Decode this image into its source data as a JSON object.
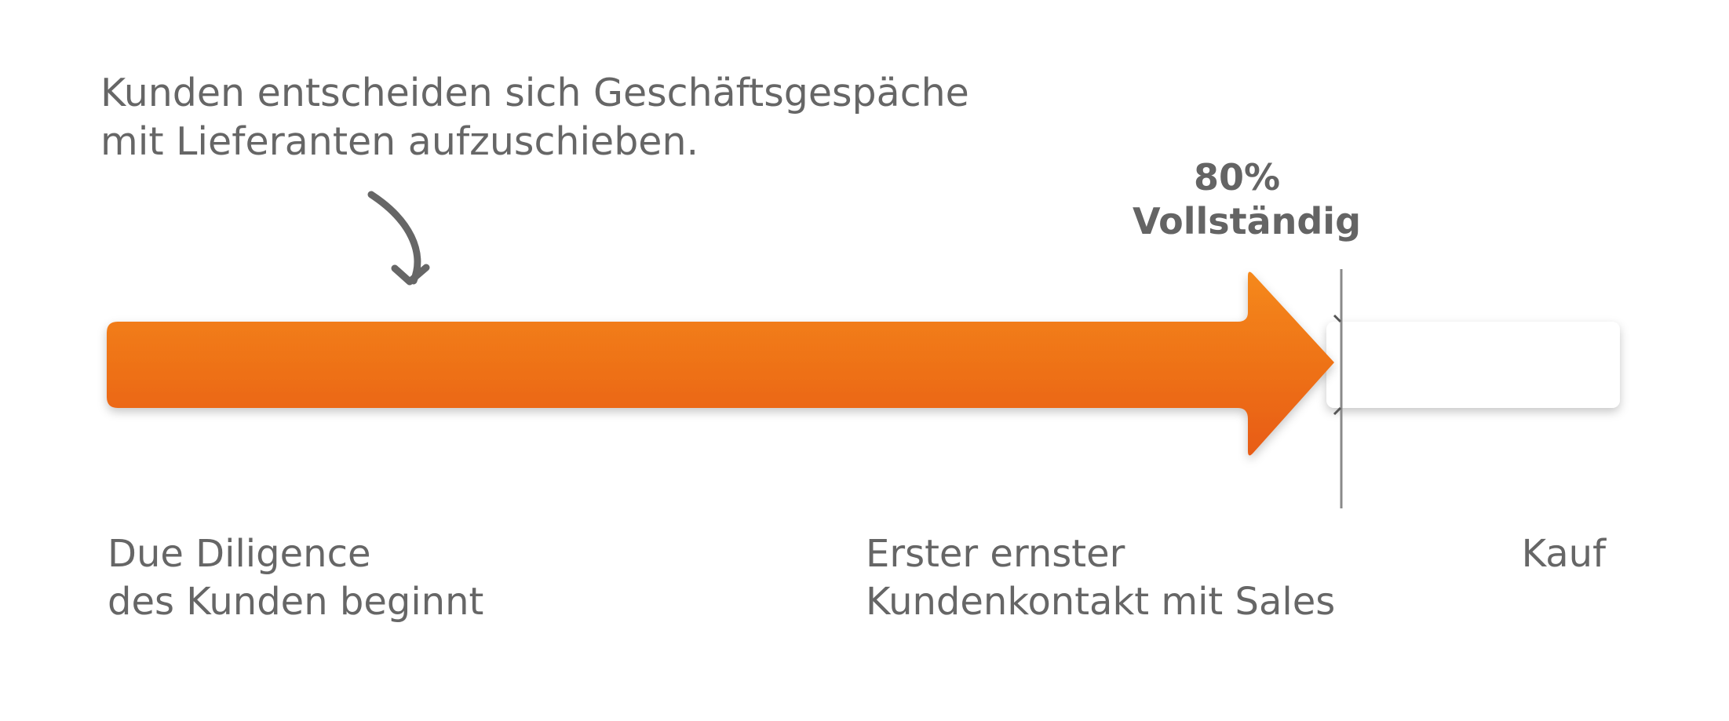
{
  "annotation": {
    "line1": "Kunden entscheiden sich Geschäftsgespäche",
    "line2": "mit Lieferanten aufzuschieben."
  },
  "progress": {
    "percent_label": "80%",
    "status_label": "Vollständig",
    "value_percent": 80
  },
  "stages": [
    {
      "line1": "Due Diligence",
      "line2": "des Kunden beginnt"
    },
    {
      "line1": "Erster ernster",
      "line2": "Kundenkontakt mit Sales"
    },
    {
      "line1": "Kauf"
    }
  ],
  "colors": {
    "arrow_top": "#F5891A",
    "arrow_bottom": "#E85C18",
    "text": "#666666",
    "remaining_bar": "#FFFFFF"
  }
}
